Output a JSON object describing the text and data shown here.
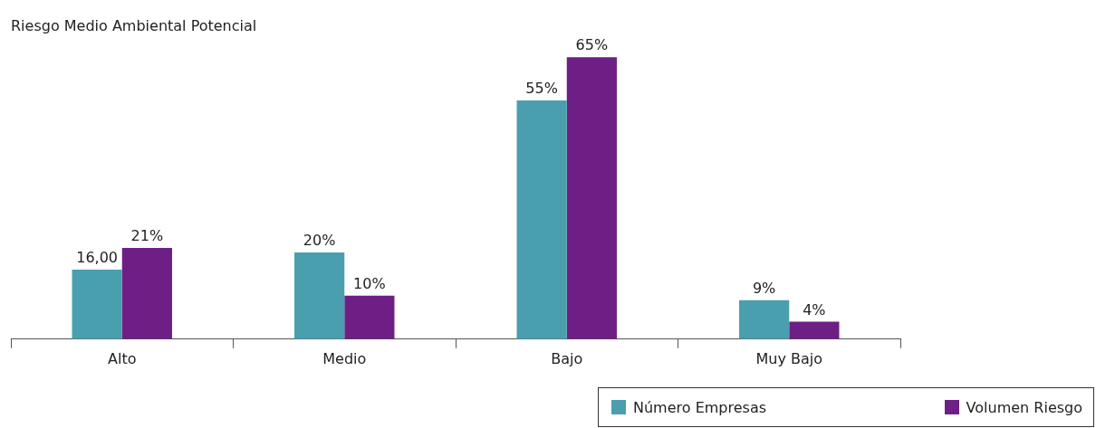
{
  "chart_data": {
    "type": "bar",
    "title": "Riesgo Medio Ambiental Potencial",
    "categories": [
      "Alto",
      "Medio",
      "Bajo",
      "Muy Bajo"
    ],
    "series": [
      {
        "name": "Número Empresas",
        "color": "#4a9fae",
        "values": [
          16,
          20,
          55,
          9
        ],
        "value_labels": [
          "16,00",
          "20%",
          "55%",
          "9%"
        ]
      },
      {
        "name": "Volumen Riesgo",
        "color": "#6e1f85",
        "values": [
          21,
          10,
          65,
          4
        ],
        "value_labels": [
          "21%",
          "10%",
          "65%",
          "4%"
        ]
      }
    ],
    "legend": "bottom right"
  }
}
